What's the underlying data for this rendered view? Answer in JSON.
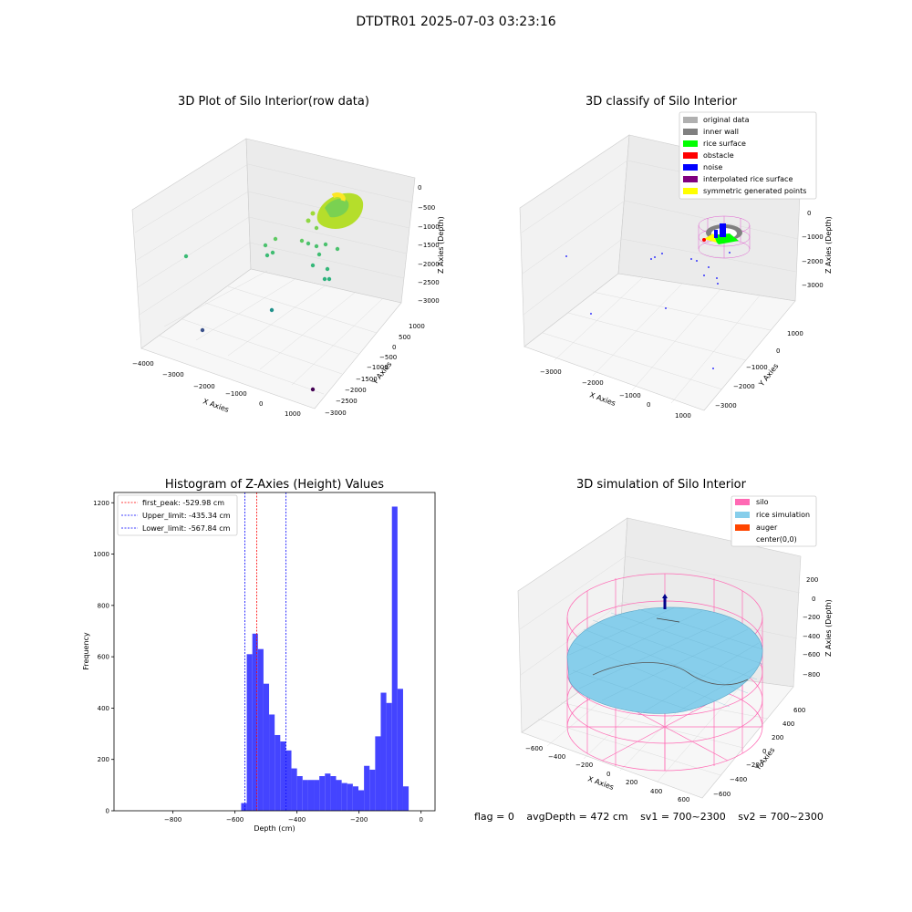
{
  "suptitle": "DTDTR01 2025-07-03 03:23:16",
  "chart_data": [
    {
      "type": "scatter",
      "title": "3D Plot of Silo Interior(row data)",
      "xlabel": "X Axies",
      "ylabel": "Y Axies",
      "zlabel": "Z Axies (Depth)",
      "x_ticks": [
        "−4000",
        "−3000",
        "−2000",
        "−1000",
        "0",
        "1000"
      ],
      "y_ticks": [
        "1000",
        "500",
        "0",
        "−500",
        "−1000",
        "−1500",
        "−2000",
        "−2500",
        "−3000"
      ],
      "z_ticks": [
        "0",
        "−500",
        "−1000",
        "−1500",
        "−2000",
        "−2500",
        "−3000"
      ],
      "colormap": "viridis"
    },
    {
      "type": "scatter",
      "title": "3D classify of Silo Interior",
      "xlabel": "X Axies",
      "ylabel": "Y Axies",
      "zlabel": "Z Axies (Depth)",
      "x_ticks": [
        "−3000",
        "−2000",
        "−1000",
        "0",
        "1000"
      ],
      "y_ticks": [
        "1000",
        "0",
        "−1000",
        "−2000",
        "−3000"
      ],
      "z_ticks": [
        "0",
        "−1000",
        "−2000",
        "−3000"
      ],
      "legend_position": "top-right",
      "legend": [
        {
          "label": "original data",
          "color": "#b0b0b0"
        },
        {
          "label": "inner wall",
          "color": "#808080"
        },
        {
          "label": "rice surface",
          "color": "#00ff00"
        },
        {
          "label": "obstacle",
          "color": "#ff0000"
        },
        {
          "label": "noise",
          "color": "#0000ff"
        },
        {
          "label": "interpolated rice surface",
          "color": "#800080"
        },
        {
          "label": "symmetric generated points",
          "color": "#ffff00"
        }
      ]
    },
    {
      "type": "bar",
      "title": "Histogram of Z-Axies (Height) Values",
      "xlabel": "Depth (cm)",
      "ylabel": "Frequency",
      "xlim": [
        -990,
        45
      ],
      "ylim": [
        0,
        1240
      ],
      "x_ticks": [
        -800,
        -600,
        -400,
        -200,
        0
      ],
      "x_tick_labels": [
        "−800",
        "−600",
        "−400",
        "−200",
        "0"
      ],
      "y_ticks": [
        0,
        200,
        400,
        600,
        800,
        1000,
        1200
      ],
      "bar_color": "#4444ff",
      "bin_start": -580,
      "bin_width": 18,
      "values": [
        30,
        610,
        690,
        630,
        495,
        375,
        295,
        270,
        235,
        165,
        135,
        120,
        120,
        120,
        135,
        145,
        135,
        120,
        108,
        105,
        95,
        80,
        175,
        160,
        290,
        460,
        420,
        1185,
        475,
        95
      ],
      "vlines": [
        {
          "x": -529.98,
          "color": "#ff0000",
          "label": "first_peak: -529.98 cm"
        },
        {
          "x": -435.34,
          "color": "#0000ff",
          "label": "Upper_limit: -435.34 cm"
        },
        {
          "x": -567.84,
          "color": "#0000ff",
          "label": "Lower_limit: -567.84 cm"
        }
      ],
      "legend_position": "top-left"
    },
    {
      "type": "surface",
      "title": "3D simulation of Silo Interior",
      "xlabel": "X Axies",
      "ylabel": "Y Axies",
      "zlabel": "Z Axies (Depth)",
      "x_ticks": [
        "−600",
        "−400",
        "−200",
        "0",
        "200",
        "400",
        "600"
      ],
      "y_ticks": [
        "600",
        "400",
        "200",
        "0",
        "−200",
        "−400",
        "−600"
      ],
      "z_ticks": [
        "200",
        "0",
        "−200",
        "−400",
        "−600",
        "−800"
      ],
      "legend_position": "top-right",
      "legend": [
        {
          "label": "silo",
          "color": "#ff69b4"
        },
        {
          "label": "rice simulation",
          "color": "#87ceeb"
        },
        {
          "label": "auger",
          "color": "#ff4500"
        },
        {
          "label": "center(0,0)",
          "color": ""
        }
      ]
    }
  ],
  "footer": {
    "flag": "flag = 0",
    "avg": "avgDepth = 472 cm",
    "sv1": "sv1 = 700~2300",
    "sv2": "sv2 = 700~2300"
  }
}
